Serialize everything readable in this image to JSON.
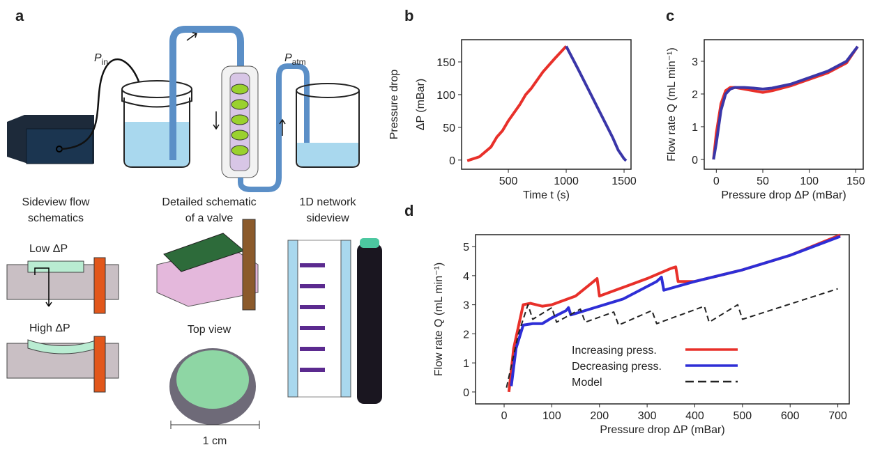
{
  "panel_labels": [
    "a",
    "b",
    "c",
    "d"
  ],
  "diagram": {
    "p_in": {
      "symbol": "P",
      "subscript": "in"
    },
    "p_atm": {
      "symbol": "P",
      "subscript": "atm"
    },
    "sideview": [
      "Sideview flow",
      "schematics"
    ],
    "valve": [
      "Detailed schematic",
      "of a valve"
    ],
    "network": [
      "1D network",
      "sideview"
    ],
    "low": "Low ΔP",
    "high": "High ΔP",
    "top_view": "Top view",
    "scale": "1 cm"
  },
  "chart_data": [
    {
      "type": "line",
      "xlabel": "Time t (s)",
      "ylabel": [
        "Pressure drop",
        "ΔP (mBar)"
      ],
      "xlim": [
        96,
        1560
      ],
      "ylim": [
        -14,
        184
      ],
      "xticks": [
        500,
        1000,
        1500
      ],
      "yticks": [
        0,
        50,
        100,
        150
      ],
      "series": [
        {
          "name": "Increasing press.",
          "color": "#e8302a",
          "x": [
            145,
            250,
            350,
            400,
            450,
            500,
            600,
            650,
            700,
            800,
            900,
            1000
          ],
          "values": [
            -1,
            5,
            20,
            35,
            45,
            60,
            85,
            100,
            110,
            135,
            155,
            174
          ]
        },
        {
          "name": "Decreasing press.",
          "color": "#3a36a8",
          "x": [
            1000,
            1100,
            1200,
            1300,
            1400,
            1450,
            1500,
            1518
          ],
          "values": [
            174,
            140,
            105,
            70,
            35,
            15,
            2,
            -1
          ]
        }
      ]
    },
    {
      "type": "line",
      "xlabel": "Pressure drop ΔP (mBar)",
      "ylabel": [
        "Flow rate Q (mL min⁻¹)"
      ],
      "xlim": [
        -13,
        158
      ],
      "ylim": [
        -0.3,
        3.66
      ],
      "xticks": [
        0,
        50,
        100,
        150
      ],
      "yticks": [
        0,
        1,
        2,
        3
      ],
      "series": [
        {
          "name": "Increasing press.",
          "color": "#e8302a",
          "x": [
            -3,
            0,
            5,
            10,
            15,
            20,
            30,
            40,
            50,
            60,
            80,
            100,
            120,
            140,
            152
          ],
          "values": [
            0,
            0.8,
            1.7,
            2.1,
            2.2,
            2.2,
            2.15,
            2.1,
            2.05,
            2.1,
            2.25,
            2.45,
            2.65,
            2.95,
            3.45
          ]
        },
        {
          "name": "Decreasing press.",
          "color": "#3a36a8",
          "x": [
            -3,
            0,
            5,
            10,
            15,
            20,
            30,
            40,
            50,
            60,
            80,
            100,
            120,
            140,
            152
          ],
          "values": [
            0,
            0.5,
            1.5,
            2.0,
            2.15,
            2.2,
            2.2,
            2.18,
            2.15,
            2.18,
            2.3,
            2.5,
            2.7,
            3.0,
            3.45
          ]
        }
      ]
    },
    {
      "type": "line",
      "xlabel": "Pressure drop ΔP (mBar)",
      "ylabel": [
        "Flow rate Q (mL min⁻¹)"
      ],
      "xlim": [
        -60,
        724
      ],
      "ylim": [
        -0.41,
        5.41
      ],
      "xticks": [
        0,
        100,
        200,
        300,
        400,
        500,
        600,
        700
      ],
      "yticks": [
        0,
        1,
        2,
        3,
        4,
        5
      ],
      "legend": "lower right",
      "series": [
        {
          "name": "Increasing press.",
          "color": "#e8302a",
          "x": [
            10,
            20,
            40,
            55,
            80,
            100,
            150,
            180,
            195,
            200,
            250,
            300,
            350,
            360,
            365,
            400,
            450,
            500,
            530,
            600,
            705
          ],
          "values": [
            0,
            1.5,
            3.0,
            3.05,
            2.95,
            3.0,
            3.3,
            3.7,
            3.9,
            3.3,
            3.6,
            3.9,
            4.25,
            4.3,
            3.8,
            3.8,
            4.0,
            4.2,
            4.35,
            4.7,
            5.4
          ]
        },
        {
          "name": "Decreasing press.",
          "color": "#2e2ed6",
          "x": [
            15,
            25,
            40,
            60,
            80,
            100,
            130,
            135,
            140,
            180,
            250,
            320,
            330,
            335,
            400,
            500,
            600,
            705
          ],
          "values": [
            0.2,
            1.5,
            2.3,
            2.35,
            2.35,
            2.55,
            2.8,
            2.9,
            2.65,
            2.85,
            3.2,
            3.8,
            3.95,
            3.5,
            3.8,
            4.2,
            4.7,
            5.35
          ]
        },
        {
          "name": "Model",
          "color": "#222222",
          "dash": true,
          "x": [
            5,
            30,
            50,
            60,
            100,
            110,
            160,
            170,
            230,
            240,
            310,
            320,
            420,
            430,
            490,
            500,
            700
          ],
          "values": [
            0.15,
            2.0,
            3.0,
            2.5,
            2.9,
            2.4,
            2.85,
            2.4,
            2.75,
            2.3,
            2.8,
            2.35,
            2.95,
            2.4,
            3.0,
            2.5,
            3.55
          ]
        }
      ]
    }
  ]
}
